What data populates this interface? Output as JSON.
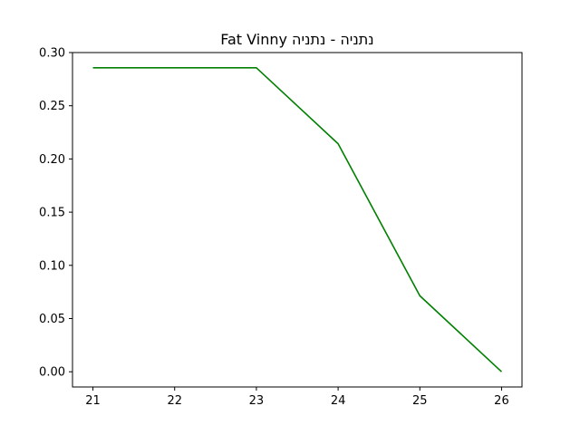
{
  "chart_data": {
    "type": "line",
    "title": "Fat Vinny נתניה - נתניה",
    "xlabel": "",
    "ylabel": "",
    "x": [
      21,
      23,
      24,
      25,
      26
    ],
    "series": [
      {
        "values": [
          0.2857,
          0.2857,
          0.2143,
          0.0714,
          0.0
        ]
      }
    ],
    "xlim": [
      20.75,
      26.25
    ],
    "ylim": [
      -0.0143,
      0.3
    ],
    "xticks": [
      "21",
      "22",
      "23",
      "24",
      "25",
      "26"
    ],
    "yticks": [
      "0.00",
      "0.05",
      "0.10",
      "0.15",
      "0.20",
      "0.25",
      "0.30"
    ],
    "line_color": "#008000",
    "grid": false
  }
}
